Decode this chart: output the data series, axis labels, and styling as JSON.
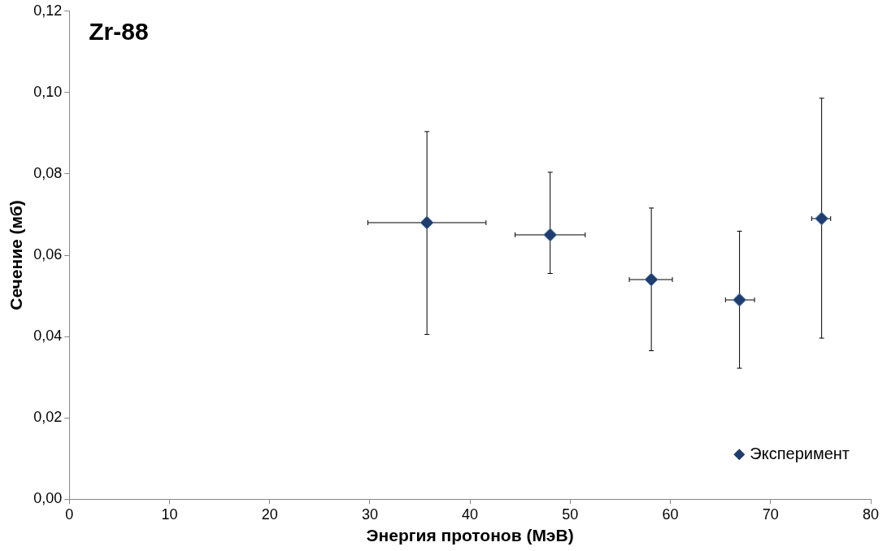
{
  "chart_data": {
    "type": "scatter",
    "title": "Zr-88",
    "xlabel": "Энергия протонов (МэВ)",
    "ylabel": "Сечение (мб)",
    "x": [
      35.7,
      48.0,
      58.1,
      66.9,
      75.1
    ],
    "series": [
      {
        "name": "Эксперимент",
        "color": "#1f3d6e",
        "values": [
          0.068,
          0.065,
          0.054,
          0.049,
          0.069
        ],
        "errors": [
          [
            0.0405,
            0.0904
          ],
          [
            0.0555,
            0.0804
          ],
          [
            0.0365,
            0.0716
          ],
          [
            0.0322,
            0.0659
          ],
          [
            0.0396,
            0.0986
          ]
        ],
        "xerrors": [
          [
            29.8,
            41.6
          ],
          [
            44.5,
            51.5
          ],
          [
            55.9,
            60.2
          ],
          [
            65.5,
            68.4
          ],
          [
            74.1,
            76.0
          ]
        ]
      }
    ],
    "xlim": [
      0,
      80
    ],
    "xticks": [
      0,
      10,
      20,
      30,
      40,
      50,
      60,
      70,
      80
    ],
    "ylim": [
      0,
      0.12
    ],
    "yticks": [
      {
        "value": 0,
        "label": "0,00"
      },
      {
        "value": 0.02,
        "label": "0,02"
      },
      {
        "value": 0.04,
        "label": "0,04"
      },
      {
        "value": 0.06,
        "label": "0,06"
      },
      {
        "value": 0.08,
        "label": "0,08"
      },
      {
        "value": 0.1,
        "label": "0,10"
      },
      {
        "value": 0.12,
        "label": "0,12"
      }
    ],
    "grid": false,
    "legend": "bottom right",
    "marker": "diamond"
  }
}
